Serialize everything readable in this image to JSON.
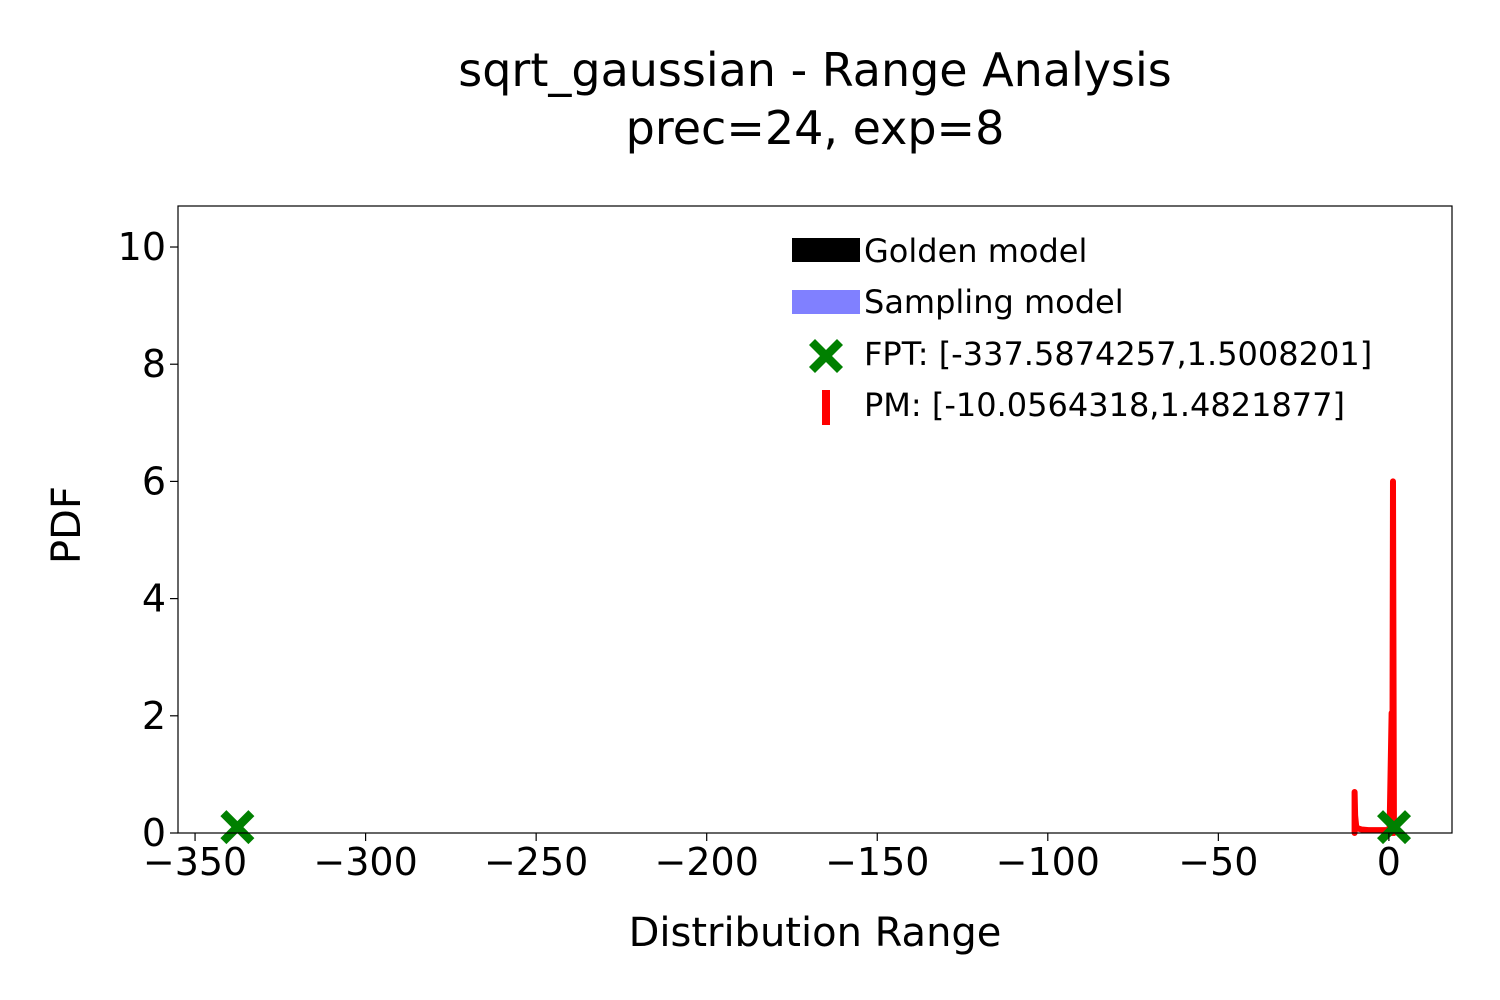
{
  "chart_data": {
    "type": "line",
    "title": "sqrt_gaussian - Range Analysis",
    "subtitle": "prec=24, exp=8",
    "xlabel": "Distribution Range",
    "ylabel": "PDF",
    "xlim": [
      -355,
      18.5
    ],
    "ylim": [
      0,
      10.7
    ],
    "xticks": [
      -350,
      -300,
      -250,
      -200,
      -150,
      -100,
      -50,
      0
    ],
    "xtick_labels": [
      "−350",
      "−300",
      "−250",
      "−200",
      "−150",
      "−100",
      "−50",
      "0"
    ],
    "yticks": [
      0,
      2,
      4,
      6,
      8,
      10
    ],
    "ytick_labels": [
      "0",
      "2",
      "4",
      "6",
      "8",
      "10"
    ],
    "grid": false,
    "legend_position": "top-right",
    "legend": [
      {
        "label": "Golden model",
        "color": "#000000",
        "marker": "patch"
      },
      {
        "label": "Sampling model",
        "color": "#8080ff",
        "marker": "patch"
      },
      {
        "label": "FPT: [-337.5874257,1.5008201]",
        "color": "#008000",
        "marker": "X"
      },
      {
        "label": "PM: [-10.0564318,1.4821877]",
        "color": "#ff0000",
        "marker": "|"
      }
    ],
    "series": [
      {
        "name": "PM: [-10.0564318,1.4821877]",
        "color": "#ff0000",
        "points": [
          [
            -10.0564,
            0.0
          ],
          [
            -10.0564,
            0.7
          ],
          [
            -9.9,
            0.3
          ],
          [
            -9.6,
            0.12
          ],
          [
            -9.2,
            0.08
          ],
          [
            -8.0,
            0.06
          ],
          [
            -6.0,
            0.05
          ],
          [
            -4.0,
            0.05
          ],
          [
            -2.0,
            0.05
          ],
          [
            -0.5,
            0.05
          ],
          [
            0.2,
            0.06
          ],
          [
            0.8,
            2.05
          ],
          [
            1.0,
            0.0
          ],
          [
            1.2,
            6.0
          ],
          [
            1.4821877,
            0.0
          ]
        ]
      }
    ],
    "markers": [
      {
        "name": "FPT: [-337.5874257,1.5008201]",
        "color": "#008000",
        "points": [
          [
            -337.5874257,
            0.1
          ],
          [
            1.5008201,
            0.1
          ]
        ]
      }
    ]
  }
}
